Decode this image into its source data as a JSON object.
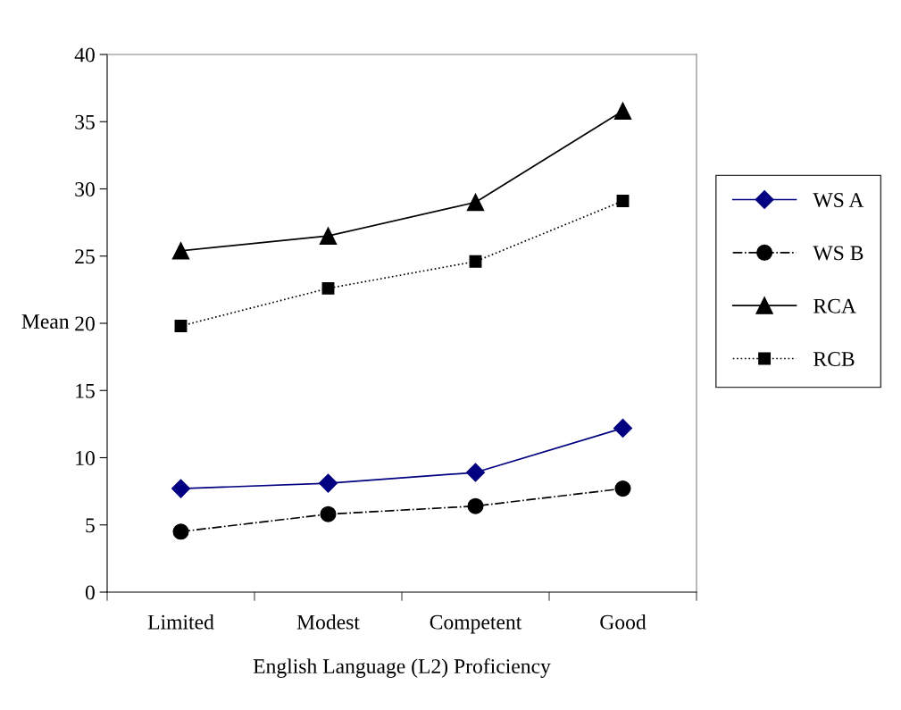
{
  "chart_data": {
    "type": "line",
    "xlabel": "English Language (L2) Proficiency",
    "ylabel": "Mean",
    "categories": [
      "Limited",
      "Modest",
      "Competent",
      "Good"
    ],
    "series": [
      {
        "name": "WS A",
        "color": "#000080",
        "values": [
          7.7,
          8.1,
          8.9,
          12.2
        ],
        "marker": "diamond",
        "line_style": "solid"
      },
      {
        "name": "WS B",
        "color": "#000000",
        "values": [
          4.5,
          5.8,
          6.4,
          7.7
        ],
        "marker": "circle",
        "line_style": "dashdot"
      },
      {
        "name": "RCA",
        "color": "#000000",
        "values": [
          25.4,
          26.5,
          29.0,
          35.8
        ],
        "marker": "triangle",
        "line_style": "solid"
      },
      {
        "name": "RCB",
        "color": "#000000",
        "values": [
          19.8,
          22.6,
          24.6,
          29.1
        ],
        "marker": "square",
        "line_style": "dotted"
      }
    ],
    "ylim": [
      0,
      40
    ],
    "yticks": [
      0,
      5,
      10,
      15,
      20,
      25,
      30,
      35,
      40
    ],
    "grid": false,
    "legend": "right"
  }
}
